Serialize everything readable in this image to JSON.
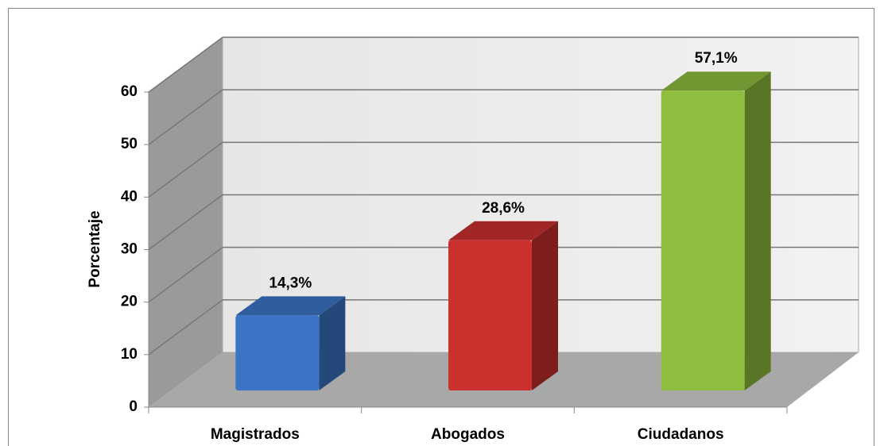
{
  "chart_data": {
    "type": "bar3d",
    "y_axis_label": "Porcentaje",
    "categories": [
      "Magistrados",
      "Abogados",
      "Ciudadanos"
    ],
    "values": [
      14.3,
      28.6,
      57.1
    ],
    "value_labels": [
      "14,3%",
      "28,6%",
      "57,1%"
    ],
    "colors": [
      "#3b74c6",
      "#c9302e",
      "#8fbd3e"
    ],
    "ylim": [
      0,
      60
    ],
    "yticks": [
      0,
      10,
      20,
      30,
      40,
      50,
      60
    ],
    "grid": true
  }
}
